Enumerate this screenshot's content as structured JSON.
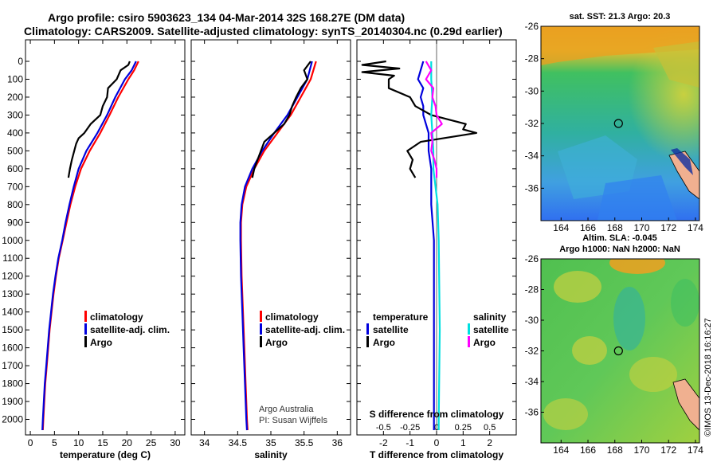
{
  "title": {
    "line1": "Argo profile: csiro 5903623_134 04-Mar-2014 32S 168.27E (DM data)",
    "line2": "Climatology: CARS2009. Satellite-adjusted climatology: synTS_20140304.nc (0.29d earlier)"
  },
  "colors": {
    "climatology": "#ff0000",
    "satellite": "#0000dd",
    "argo": "#000000",
    "salinity_satellite": "#00e0e0",
    "salinity_argo": "#ff00ff"
  },
  "chart_data": [
    {
      "type": "line",
      "xlabel": "temperature (deg C)",
      "ylabel": "",
      "xlim": [
        -1,
        32
      ],
      "ylim": [
        2060,
        0
      ],
      "xticks": [
        "0",
        "5",
        "10",
        "15",
        "20",
        "25",
        "30"
      ],
      "yticks": [
        "0",
        "100",
        "200",
        "300",
        "400",
        "500",
        "600",
        "700",
        "800",
        "900",
        "1000",
        "1100",
        "1200",
        "1300",
        "1400",
        "1500",
        "1600",
        "1700",
        "1800",
        "1900",
        "2000"
      ],
      "legend": [
        "climatology",
        "satellite-adj. clim.",
        "Argo"
      ],
      "series": [
        {
          "name": "climatology",
          "depth": [
            0,
            50,
            100,
            200,
            300,
            400,
            500,
            600,
            700,
            800,
            900,
            1000,
            1100,
            1200,
            1300,
            1400,
            1500,
            1600,
            1700,
            1800,
            1900,
            2000,
            2060
          ],
          "values": [
            22.4,
            21.5,
            20.3,
            18.2,
            16.4,
            14.5,
            12.3,
            10.5,
            9.3,
            8.3,
            7.5,
            6.7,
            5.9,
            5.3,
            4.8,
            4.4,
            4.0,
            3.7,
            3.4,
            3.1,
            2.9,
            2.7,
            2.6
          ]
        },
        {
          "name": "satellite-adj. clim.",
          "depth": [
            0,
            50,
            100,
            200,
            300,
            400,
            500,
            600,
            700,
            800,
            900,
            1000,
            1100,
            1200,
            1300,
            1400,
            1500,
            1600,
            1700,
            1800,
            1900,
            2000,
            2060
          ],
          "values": [
            21.9,
            21.0,
            19.6,
            17.6,
            15.9,
            13.9,
            11.6,
            10.0,
            9.0,
            8.1,
            7.3,
            6.6,
            5.8,
            5.2,
            4.7,
            4.3,
            3.9,
            3.6,
            3.3,
            3.0,
            2.8,
            2.6,
            2.5
          ]
        },
        {
          "name": "Argo",
          "depth": [
            0,
            20,
            50,
            100,
            150,
            200,
            250,
            300,
            350,
            400,
            430,
            460,
            500,
            550,
            600,
            650
          ],
          "values": [
            20.6,
            20.3,
            18.7,
            17.9,
            16.1,
            15.9,
            15.0,
            14.5,
            12.5,
            11.2,
            10.0,
            9.5,
            9.1,
            8.6,
            8.2,
            7.9
          ]
        }
      ]
    },
    {
      "type": "line",
      "xlabel": "salinity",
      "xlim": [
        33.8,
        36.2
      ],
      "ylim": [
        2060,
        0
      ],
      "xticks": [
        "34",
        "34.5",
        "35",
        "35.5",
        "36"
      ],
      "legend": [
        "climatology",
        "satellite-adj. clim.",
        "Argo"
      ],
      "credit": [
        "Argo Australia",
        "PI: Susan Wijffels"
      ],
      "series": [
        {
          "name": "climatology",
          "depth": [
            0,
            100,
            200,
            300,
            400,
            500,
            600,
            700,
            800,
            900,
            1000,
            1200,
            1400,
            1600,
            1800,
            2000,
            2060
          ],
          "values": [
            35.68,
            35.6,
            35.45,
            35.3,
            35.1,
            34.9,
            34.75,
            34.63,
            34.57,
            34.55,
            34.55,
            34.56,
            34.58,
            34.6,
            34.62,
            34.64,
            34.65
          ]
        },
        {
          "name": "satellite-adj. clim.",
          "depth": [
            0,
            100,
            200,
            300,
            400,
            500,
            600,
            700,
            800,
            900,
            1000,
            1200,
            1400,
            1600,
            1800,
            2000,
            2060
          ],
          "values": [
            35.62,
            35.55,
            35.4,
            35.25,
            35.05,
            34.87,
            34.72,
            34.61,
            34.56,
            34.54,
            34.54,
            34.55,
            34.57,
            34.59,
            34.61,
            34.63,
            34.64
          ]
        },
        {
          "name": "Argo",
          "depth": [
            0,
            50,
            100,
            150,
            200,
            250,
            300,
            350,
            400,
            450,
            500,
            550,
            600,
            650
          ],
          "values": [
            35.6,
            35.5,
            35.55,
            35.45,
            35.38,
            35.32,
            35.28,
            35.2,
            35.05,
            34.9,
            34.85,
            34.8,
            34.75,
            34.72
          ]
        }
      ]
    },
    {
      "type": "line",
      "xlabel": "T difference from climatology",
      "xlim": [
        -3,
        3
      ],
      "ylim": [
        2060,
        0
      ],
      "xticks": [
        "-2",
        "-1",
        "0",
        "1",
        "2"
      ],
      "s_xlabel": "S difference from climatology",
      "s_xticks": [
        "-0.5",
        "-0.25",
        "0",
        "0.25",
        "0.5"
      ],
      "legend_headers": [
        "temperature",
        "salinity"
      ],
      "legend": [
        "satellite",
        "Argo",
        "satellite",
        "Argo"
      ],
      "series": [
        {
          "name": "satellite",
          "quantity": "temperature",
          "depth": [
            0,
            50,
            100,
            150,
            200,
            250,
            300,
            400,
            500,
            600,
            800,
            1000,
            1500,
            2000,
            2060
          ],
          "values": [
            -0.5,
            -0.6,
            -0.7,
            -0.5,
            -0.6,
            -0.5,
            -0.5,
            -0.3,
            -0.3,
            -0.2,
            -0.2,
            -0.1,
            -0.1,
            -0.1,
            -0.1
          ]
        },
        {
          "name": "Argo",
          "quantity": "temperature",
          "depth": [
            0,
            20,
            40,
            60,
            80,
            100,
            150,
            200,
            250,
            300,
            350,
            380,
            400,
            450,
            500,
            550,
            600,
            650
          ],
          "values": [
            -1.9,
            -2.8,
            -1.4,
            -2.8,
            -1.6,
            -1.8,
            -1.8,
            -1.0,
            -0.8,
            -0.2,
            1.1,
            1.0,
            1.5,
            -0.6,
            -1.1,
            -0.9,
            -1.0,
            -0.8
          ]
        },
        {
          "name": "satellite",
          "quantity": "salinity",
          "depth": [
            0,
            100,
            200,
            300,
            400,
            500,
            600,
            800,
            1000,
            1500,
            2000,
            2060
          ],
          "values": [
            -0.05,
            -0.05,
            -0.04,
            -0.05,
            -0.04,
            -0.03,
            -0.03,
            0.01,
            0.02,
            0.03,
            0.02,
            0.02
          ]
        },
        {
          "name": "Argo",
          "quantity": "salinity",
          "depth": [
            0,
            50,
            100,
            150,
            200,
            250,
            300,
            350,
            400,
            450,
            500,
            550,
            600,
            650
          ],
          "values": [
            -0.1,
            -0.05,
            -0.1,
            -0.03,
            -0.04,
            -0.01,
            0.0,
            0.05,
            -0.05,
            -0.04,
            -0.05,
            -0.02,
            0.0,
            0.0
          ]
        }
      ]
    },
    {
      "type": "heatmap",
      "title": "sat. SST: 21.3 Argo: 20.3",
      "xticks": [
        "164",
        "166",
        "168",
        "170",
        "172",
        "174"
      ],
      "yticks": [
        "-26",
        "-28",
        "-30",
        "-32",
        "-34",
        "-36"
      ],
      "xlim": [
        162.5,
        174.3
      ],
      "ylim": [
        -38,
        -26
      ],
      "marker": {
        "lon": 168.27,
        "lat": -32.0
      }
    },
    {
      "type": "heatmap",
      "title_line1": "Altim. SLA: -0.045",
      "title_line2": "Argo h1000: NaN h2000: NaN",
      "xticks": [
        "164",
        "166",
        "168",
        "170",
        "172",
        "174"
      ],
      "yticks": [
        "-26",
        "-28",
        "-30",
        "-32",
        "-34",
        "-36"
      ],
      "xlim": [
        162.5,
        174.3
      ],
      "ylim": [
        -38,
        -26
      ],
      "marker": {
        "lon": 168.27,
        "lat": -32.0
      }
    }
  ],
  "stamp": "©IMOS 13-Dec-2018 16:16:27"
}
